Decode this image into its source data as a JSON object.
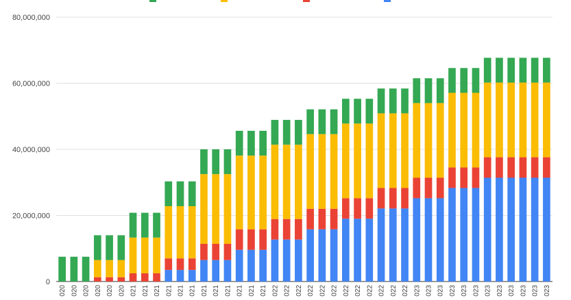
{
  "chart_data": {
    "type": "bar",
    "stacked": true,
    "grid": true,
    "legend_position": "top",
    "ylim": [
      0,
      80000000
    ],
    "y_ticks": [
      "0",
      "20,000,000",
      "40,000,000",
      "60,000,000",
      "80,000,000"
    ],
    "categories": [
      "020",
      "020",
      "020",
      "020",
      "020",
      "020",
      "021",
      "021",
      "021",
      "021",
      "021",
      "021",
      "021",
      "021",
      "021",
      "021",
      "021",
      "021",
      "022",
      "022",
      "022",
      "022",
      "022",
      "022",
      "022",
      "022",
      "022",
      "022",
      "022",
      "022",
      "023",
      "023",
      "023",
      "023",
      "023",
      "023",
      "023",
      "023",
      "023",
      "023",
      "023",
      "023"
    ],
    "series": [
      {
        "color": "#4285F4",
        "values": [
          0,
          0,
          0,
          0,
          0,
          0,
          0,
          0,
          0,
          3500000,
          3500000,
          3500000,
          6500000,
          6500000,
          6500000,
          9600000,
          9600000,
          9600000,
          12700000,
          12700000,
          12700000,
          15800000,
          15800000,
          15800000,
          19000000,
          19000000,
          19000000,
          22100000,
          22100000,
          22100000,
          25200000,
          25200000,
          25200000,
          28300000,
          28300000,
          28300000,
          31400000,
          31400000,
          31400000,
          31400000,
          31400000,
          31400000
        ]
      },
      {
        "color": "#EA4335",
        "values": [
          0,
          0,
          0,
          1300000,
          1300000,
          1300000,
          2500000,
          2500000,
          2500000,
          3500000,
          3500000,
          3500000,
          4900000,
          4900000,
          4900000,
          6200000,
          6200000,
          6200000,
          6200000,
          6200000,
          6200000,
          6200000,
          6200000,
          6200000,
          6200000,
          6200000,
          6200000,
          6200000,
          6200000,
          6200000,
          6200000,
          6200000,
          6200000,
          6200000,
          6200000,
          6200000,
          6200000,
          6200000,
          6200000,
          6200000,
          6200000,
          6200000
        ]
      },
      {
        "color": "#FBBC04",
        "values": [
          0,
          0,
          0,
          5200000,
          5200000,
          5200000,
          10800000,
          10800000,
          10800000,
          15800000,
          15800000,
          15800000,
          21100000,
          21100000,
          21100000,
          22300000,
          22300000,
          22300000,
          22500000,
          22500000,
          22500000,
          22600000,
          22600000,
          22600000,
          22600000,
          22600000,
          22600000,
          22600000,
          22600000,
          22600000,
          22600000,
          22600000,
          22600000,
          22600000,
          22600000,
          22600000,
          22600000,
          22600000,
          22600000,
          22600000,
          22600000,
          22600000
        ]
      },
      {
        "color": "#34A853",
        "values": [
          7500000,
          7500000,
          7500000,
          7500000,
          7500000,
          7500000,
          7500000,
          7500000,
          7500000,
          7500000,
          7500000,
          7500000,
          7500000,
          7500000,
          7500000,
          7500000,
          7500000,
          7500000,
          7500000,
          7500000,
          7500000,
          7500000,
          7500000,
          7500000,
          7500000,
          7500000,
          7500000,
          7500000,
          7500000,
          7500000,
          7500000,
          7500000,
          7500000,
          7500000,
          7500000,
          7500000,
          7500000,
          7500000,
          7500000,
          7500000,
          7500000,
          7500000
        ]
      }
    ]
  }
}
